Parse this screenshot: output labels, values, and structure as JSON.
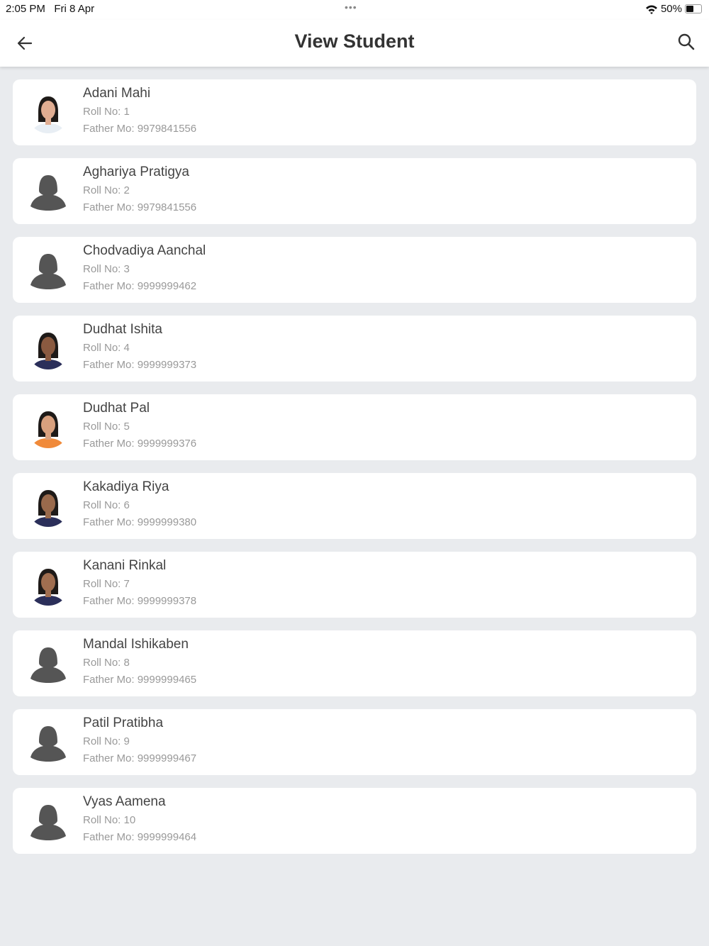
{
  "status_bar": {
    "time": "2:05 PM",
    "date": "Fri 8 Apr",
    "dots": "•••",
    "battery": "50%",
    "battery_level": 0.5
  },
  "header": {
    "title": "View Student",
    "back_icon": "arrow-left-icon",
    "search_icon": "search-icon"
  },
  "roll_prefix": "Roll No: ",
  "father_prefix": "Father Mo: ",
  "students": [
    {
      "name": "Adani Mahi",
      "roll": "Roll No: 1",
      "father": "Father Mo: 9979841556",
      "avatar": "photo",
      "skin": "#e0ad92",
      "shirt": "#e8eef4"
    },
    {
      "name": "Aghariya Pratigya",
      "roll": "Roll No: 2",
      "father": "Father Mo: 9979841556",
      "avatar": "placeholder"
    },
    {
      "name": "Chodvadiya Aanchal",
      "roll": "Roll No: 3",
      "father": "Father Mo: 9999999462",
      "avatar": "placeholder"
    },
    {
      "name": "Dudhat Ishita",
      "roll": "Roll No: 4",
      "father": "Father Mo: 9999999373",
      "avatar": "photo",
      "skin": "#8a5a40",
      "shirt": "#2b2f5a"
    },
    {
      "name": "Dudhat Pal",
      "roll": "Roll No: 5",
      "father": "Father Mo: 9999999376",
      "avatar": "photo",
      "skin": "#d8a07e",
      "shirt": "#f08a3a"
    },
    {
      "name": "Kakadiya Riya",
      "roll": "Roll No: 6",
      "father": "Father Mo: 9999999380",
      "avatar": "photo",
      "skin": "#9a6a4c",
      "shirt": "#2b2f5a"
    },
    {
      "name": "Kanani Rinkal",
      "roll": "Roll No: 7",
      "father": "Father Mo: 9999999378",
      "avatar": "photo",
      "skin": "#a06e50",
      "shirt": "#2b2f5a"
    },
    {
      "name": "Mandal Ishikaben",
      "roll": "Roll No: 8",
      "father": "Father Mo: 9999999465",
      "avatar": "placeholder"
    },
    {
      "name": "Patil Pratibha",
      "roll": "Roll No: 9",
      "father": "Father Mo: 9999999467",
      "avatar": "placeholder"
    },
    {
      "name": "Vyas Aamena",
      "roll": "Roll No: 10",
      "father": "Father Mo: 9999999464",
      "avatar": "placeholder"
    }
  ]
}
